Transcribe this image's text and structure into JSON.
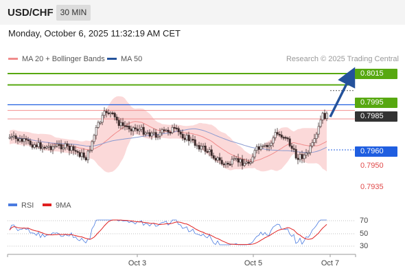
{
  "header": {
    "symbol": "USD/CHF",
    "timeframe": "30 MIN"
  },
  "datetime": "Monday, October 6, 2025 11:32:19 AM CET",
  "legend": {
    "bb_label": "MA 20 + Bollinger Bands",
    "bb_color": "#f08c8c",
    "ma50_label": "MA 50",
    "ma50_color": "#24529b"
  },
  "credit": "Research © 2025 Trading Central",
  "colors": {
    "support_resistance_green": "#57a810",
    "current_price": "#333333",
    "pivot_blue": "#1f5ee0",
    "red_level": "#f06464",
    "bull_candle": "#ffffff",
    "bear_candle": "#3a2a2a",
    "bb_fill": "#fbd9d9",
    "rsi_line": "#4a7be0",
    "rsi_ma": "#e02020"
  },
  "price_levels": [
    {
      "label": "0.8015",
      "value": 0.8015,
      "style": "green-box"
    },
    {
      "label": "0.7995",
      "value": 0.7995,
      "style": "green-box"
    },
    {
      "label": "0.7985",
      "value": 0.7985,
      "style": "current-price"
    },
    {
      "label": "0.7960",
      "value": 0.796,
      "style": "blue-box"
    },
    {
      "label": "0.7950",
      "value": 0.795,
      "style": "red-text"
    },
    {
      "label": "0.7935",
      "value": 0.7935,
      "style": "red-text"
    }
  ],
  "rsi": {
    "legend_rsi": "RSI",
    "legend_ma": "9MA",
    "ticks": [
      "70",
      "50",
      "30"
    ]
  },
  "x_axis": {
    "ticks": [
      "Oct 3",
      "Oct 5",
      "Oct 7"
    ]
  },
  "icons": {
    "forecast_arrow": "arrow-up-right-icon"
  }
}
